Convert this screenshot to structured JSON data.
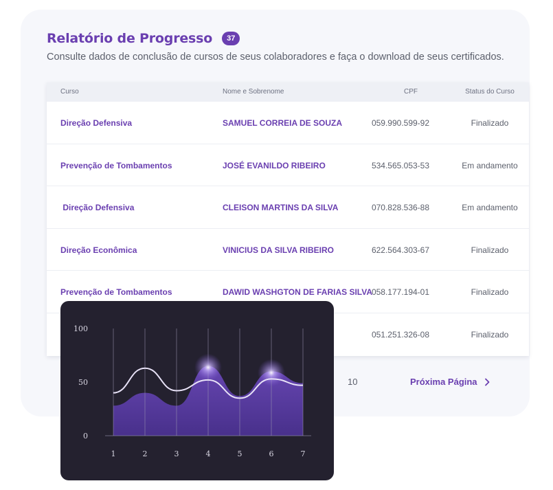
{
  "header": {
    "title": "Relatório de Progresso",
    "count": "37",
    "subtitle": "Consulte dados de conclusão de cursos de seus colaboradores e faça o download de seus certificados."
  },
  "table": {
    "columns": [
      "Curso",
      "Nome e Sobrenome",
      "CPF",
      "Status do Curso"
    ],
    "rows": [
      {
        "course": "Direção Defensiva",
        "name": "SAMUEL CORREIA DE SOUZA",
        "cpf": "059.990.599-92",
        "status": "Finalizado"
      },
      {
        "course": "Prevenção de Tombamentos",
        "name": "JOSÉ EVANILDO RIBEIRO",
        "cpf": "534.565.053-53",
        "status": "Em andamento"
      },
      {
        "course": " Direção Defensiva",
        "name": "CLEISON MARTINS DA SILVA",
        "cpf": "070.828.536-88",
        "status": "Em andamento"
      },
      {
        "course": "Direção Econômica",
        "name": "VINICIUS DA SILVA RIBEIRO",
        "cpf": "622.564.303-67",
        "status": "Finalizado"
      },
      {
        "course": "Prevenção de Tombamentos",
        "name": "DAWID WASHGTON DE FARIAS SILVA",
        "cpf": "058.177.194-01",
        "status": "Finalizado"
      },
      {
        "course": "",
        "name": "",
        "cpf": "051.251.326-08",
        "status": "Finalizado"
      }
    ]
  },
  "pagination": {
    "last_page": "10",
    "next_label": "Próxima Página",
    "next_icon": "chevron-right-icon"
  },
  "colors": {
    "accent": "#6a3fb0",
    "chart_bg": "#24212f",
    "area": "#5b3c9e",
    "line": "#e8e2f7"
  },
  "chart_data": {
    "type": "line",
    "x": [
      1,
      2,
      3,
      4,
      5,
      6,
      7
    ],
    "xlabel": "",
    "ylabel": "",
    "ylim": [
      0,
      100
    ],
    "yticks": [
      0,
      50,
      100
    ],
    "grid": "vertical",
    "series": [
      {
        "style": "line",
        "values": [
          40,
          63,
          42,
          52,
          35,
          53,
          47
        ]
      },
      {
        "style": "area",
        "values": [
          28,
          40,
          28,
          65,
          37,
          60,
          49
        ]
      }
    ]
  }
}
